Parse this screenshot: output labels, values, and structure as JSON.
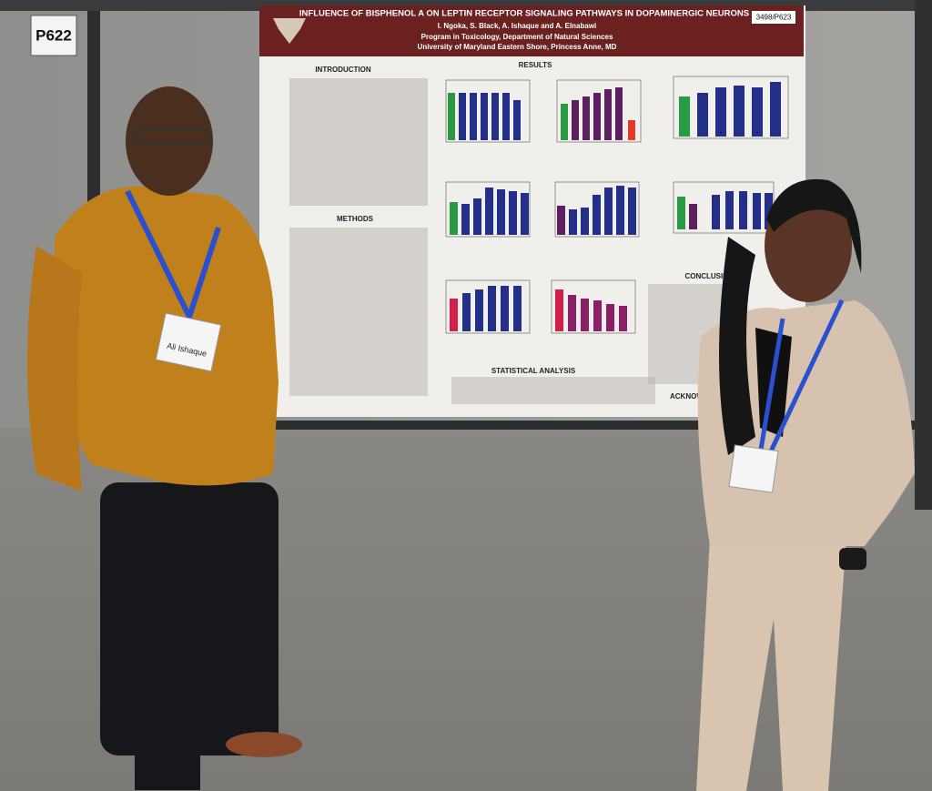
{
  "booth_sign": "P622",
  "poster": {
    "number": "3498/P623",
    "title": "INFLUENCE OF BISPHENOL A ON LEPTIN RECEPTOR SIGNALING PATHWAYS IN DOPAMINERGIC NEURONS",
    "authors": "I. Ngoka, S. Black, A. Ishaque and A. Elnabawi",
    "program": "Program in Toxicology, Department of Natural Sciences",
    "institution": "University of Maryland Eastern Shore, Princess Anne, MD",
    "sections": {
      "introduction": "INTRODUCTION",
      "results": "RESULTS",
      "methods": "METHODS",
      "statistical_analysis": "STATISTICAL ANALYSIS",
      "conclusions": "CONCLUSIONS",
      "acknowledgments": "ACKNOWLEDG"
    }
  },
  "badge_left": "Ali Ishaque"
}
